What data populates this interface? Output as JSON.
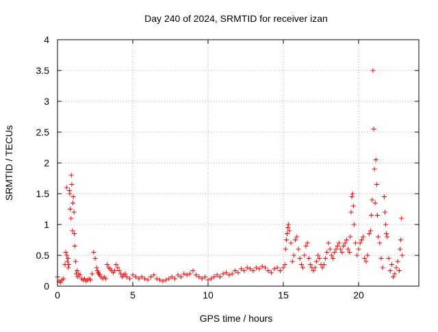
{
  "chart_data": {
    "type": "scatter",
    "title": "Day 240 of 2024, SRMTID for receiver izan",
    "xlabel": "GPS time / hours",
    "ylabel": "SRMTID / TECUs",
    "xlim": [
      0,
      24
    ],
    "ylim": [
      0,
      4
    ],
    "grid": true,
    "marker": "+",
    "color": "#ff0000",
    "xticks": [
      0,
      5,
      10,
      15,
      20
    ],
    "xtick_labels": [
      "0",
      "5",
      "10",
      "15",
      "20"
    ],
    "yticks": [
      0,
      0.5,
      1,
      1.5,
      2,
      2.5,
      3,
      3.5,
      4
    ],
    "ytick_labels": [
      "0",
      "0.5",
      "1",
      "1.5",
      "2",
      "2.5",
      "3",
      "3.5",
      "4"
    ],
    "series": [
      {
        "name": "SRMTID",
        "x": [
          0.0,
          0.1,
          0.2,
          0.3,
          0.4,
          0.5,
          0.55,
          0.6,
          0.62,
          0.65,
          0.7,
          0.72,
          0.75,
          0.8,
          0.82,
          0.85,
          0.9,
          0.92,
          0.95,
          1.0,
          1.02,
          1.05,
          1.1,
          1.12,
          1.15,
          1.2,
          1.25,
          1.3,
          1.35,
          1.4,
          1.5,
          1.6,
          1.7,
          1.8,
          1.9,
          2.0,
          2.1,
          2.2,
          2.3,
          2.4,
          2.5,
          2.6,
          2.65,
          2.7,
          2.75,
          2.8,
          2.9,
          3.0,
          3.1,
          3.2,
          3.3,
          3.4,
          3.5,
          3.6,
          3.7,
          3.8,
          3.9,
          4.0,
          4.1,
          4.2,
          4.3,
          4.4,
          4.5,
          4.6,
          4.8,
          5.0,
          5.2,
          5.4,
          5.6,
          5.8,
          6.0,
          6.2,
          6.4,
          6.6,
          6.8,
          7.0,
          7.2,
          7.4,
          7.6,
          7.8,
          8.0,
          8.2,
          8.4,
          8.6,
          8.8,
          9.0,
          9.2,
          9.4,
          9.6,
          9.8,
          10.0,
          10.2,
          10.4,
          10.6,
          10.8,
          11.0,
          11.2,
          11.4,
          11.6,
          11.8,
          12.0,
          12.2,
          12.4,
          12.6,
          12.8,
          13.0,
          13.2,
          13.4,
          13.6,
          13.8,
          14.0,
          14.2,
          14.4,
          14.6,
          14.8,
          15.0,
          15.1,
          15.15,
          15.2,
          15.25,
          15.3,
          15.35,
          15.4,
          15.5,
          15.6,
          15.7,
          15.8,
          15.9,
          16.0,
          16.1,
          16.2,
          16.3,
          16.4,
          16.5,
          16.6,
          16.7,
          16.8,
          16.9,
          17.0,
          17.1,
          17.2,
          17.3,
          17.4,
          17.5,
          17.6,
          17.7,
          17.8,
          17.9,
          18.0,
          18.1,
          18.2,
          18.3,
          18.4,
          18.5,
          18.6,
          18.7,
          18.8,
          18.9,
          19.0,
          19.1,
          19.2,
          19.3,
          19.4,
          19.45,
          19.5,
          19.55,
          19.6,
          19.65,
          19.7,
          19.8,
          19.9,
          20.0,
          20.1,
          20.2,
          20.3,
          20.4,
          20.5,
          20.6,
          20.7,
          20.8,
          20.85,
          20.9,
          20.95,
          21.0,
          21.05,
          21.1,
          21.15,
          21.2,
          21.25,
          21.3,
          21.4,
          21.5,
          21.6,
          21.7,
          21.75,
          21.8,
          21.85,
          21.9,
          22.0,
          22.1,
          22.2,
          22.3,
          22.4,
          22.5,
          22.6,
          22.7,
          22.75,
          22.8,
          22.85,
          22.9
        ],
        "y": [
          0.15,
          0.08,
          0.06,
          0.1,
          0.12,
          0.35,
          0.55,
          1.6,
          0.5,
          0.4,
          0.45,
          0.3,
          0.35,
          1.55,
          1.5,
          1.25,
          1.1,
          1.8,
          1.65,
          0.9,
          1.35,
          1.45,
          1.2,
          0.85,
          0.65,
          0.4,
          0.2,
          0.25,
          0.15,
          0.2,
          0.18,
          0.12,
          0.1,
          0.12,
          0.08,
          0.1,
          0.12,
          0.1,
          0.2,
          0.55,
          0.45,
          0.3,
          0.25,
          0.22,
          0.2,
          0.18,
          0.15,
          0.12,
          0.15,
          0.12,
          0.35,
          0.3,
          0.28,
          0.25,
          0.22,
          0.25,
          0.35,
          0.3,
          0.25,
          0.2,
          0.15,
          0.18,
          0.2,
          0.15,
          0.12,
          0.18,
          0.15,
          0.12,
          0.15,
          0.12,
          0.1,
          0.15,
          0.18,
          0.12,
          0.1,
          0.08,
          0.1,
          0.12,
          0.15,
          0.12,
          0.18,
          0.15,
          0.2,
          0.18,
          0.2,
          0.25,
          0.18,
          0.15,
          0.12,
          0.15,
          0.1,
          0.12,
          0.15,
          0.18,
          0.15,
          0.2,
          0.22,
          0.18,
          0.2,
          0.25,
          0.22,
          0.28,
          0.25,
          0.3,
          0.28,
          0.25,
          0.3,
          0.28,
          0.32,
          0.3,
          0.25,
          0.22,
          0.28,
          0.3,
          0.25,
          0.3,
          0.35,
          0.6,
          0.75,
          0.85,
          0.95,
          1.0,
          0.9,
          0.7,
          0.4,
          0.5,
          0.75,
          0.8,
          0.6,
          0.45,
          0.35,
          0.3,
          0.5,
          0.65,
          0.7,
          0.45,
          0.35,
          0.3,
          0.25,
          0.3,
          0.4,
          0.5,
          0.45,
          0.35,
          0.3,
          0.35,
          0.45,
          0.55,
          0.7,
          0.6,
          0.5,
          0.45,
          0.55,
          0.6,
          0.65,
          0.7,
          0.6,
          0.55,
          0.65,
          0.7,
          0.75,
          0.6,
          0.55,
          0.8,
          1.2,
          1.45,
          1.5,
          1.3,
          1.0,
          0.7,
          0.5,
          0.6,
          0.7,
          0.75,
          0.8,
          0.45,
          0.4,
          0.5,
          0.85,
          0.9,
          1.15,
          1.4,
          3.5,
          2.55,
          1.9,
          1.35,
          2.05,
          1.65,
          1.15,
          0.8,
          0.7,
          0.45,
          0.3,
          1.45,
          1.2,
          1.0,
          0.85,
          0.8,
          0.45,
          0.25,
          0.35,
          0.15,
          0.2,
          0.3,
          0.4,
          0.25,
          0.6,
          0.75,
          1.1,
          0.5
        ]
      }
    ]
  }
}
